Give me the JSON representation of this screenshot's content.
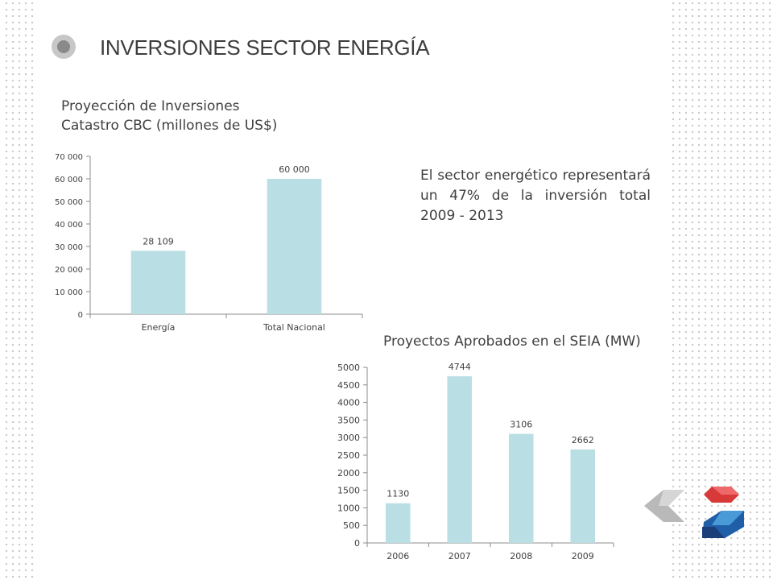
{
  "slide": {
    "title": "INVERSIONES SECTOR ENERGÍA",
    "subtitle_line1": "Proyección de Inversiones",
    "subtitle_line2": "Catastro CBC (millones de US$)",
    "note": "El sector energético representará un 47% de la inversión total 2009 - 2013",
    "chart2_title": "Proyectos Aprobados en el SEIA (MW)"
  },
  "colors": {
    "bar": "#b9dfe4",
    "axis": "#8c8c8c",
    "dots": "#c9c9c9"
  },
  "chart_data": [
    {
      "type": "bar",
      "title": "Proyección de Inversiones Catastro CBC (millones de US$)",
      "categories": [
        "Energía",
        "Total Nacional"
      ],
      "values": [
        28109,
        60000
      ],
      "data_labels": [
        "28 109",
        "60 000"
      ],
      "ylim": [
        0,
        70000
      ],
      "yticks": [
        0,
        10000,
        20000,
        30000,
        40000,
        50000,
        60000,
        70000
      ],
      "ytick_labels": [
        "0",
        "10 000",
        "20 000",
        "30 000",
        "40 000",
        "50 000",
        "60 000",
        "70 000"
      ],
      "grid": false,
      "legend": "none"
    },
    {
      "type": "bar",
      "title": "Proyectos Aprobados en el SEIA (MW)",
      "categories": [
        "2006",
        "2007",
        "2008",
        "2009"
      ],
      "values": [
        1130,
        4744,
        3106,
        2662
      ],
      "data_labels": [
        "1130",
        "4744",
        "3106",
        "2662"
      ],
      "ylim": [
        0,
        5000
      ],
      "yticks": [
        0,
        500,
        1000,
        1500,
        2000,
        2500,
        3000,
        3500,
        4000,
        4500,
        5000
      ],
      "ytick_labels": [
        "0",
        "500",
        "1000",
        "1500",
        "2000",
        "2500",
        "3000",
        "3500",
        "4000",
        "4500",
        "5000"
      ],
      "grid": false,
      "legend": "none"
    }
  ]
}
